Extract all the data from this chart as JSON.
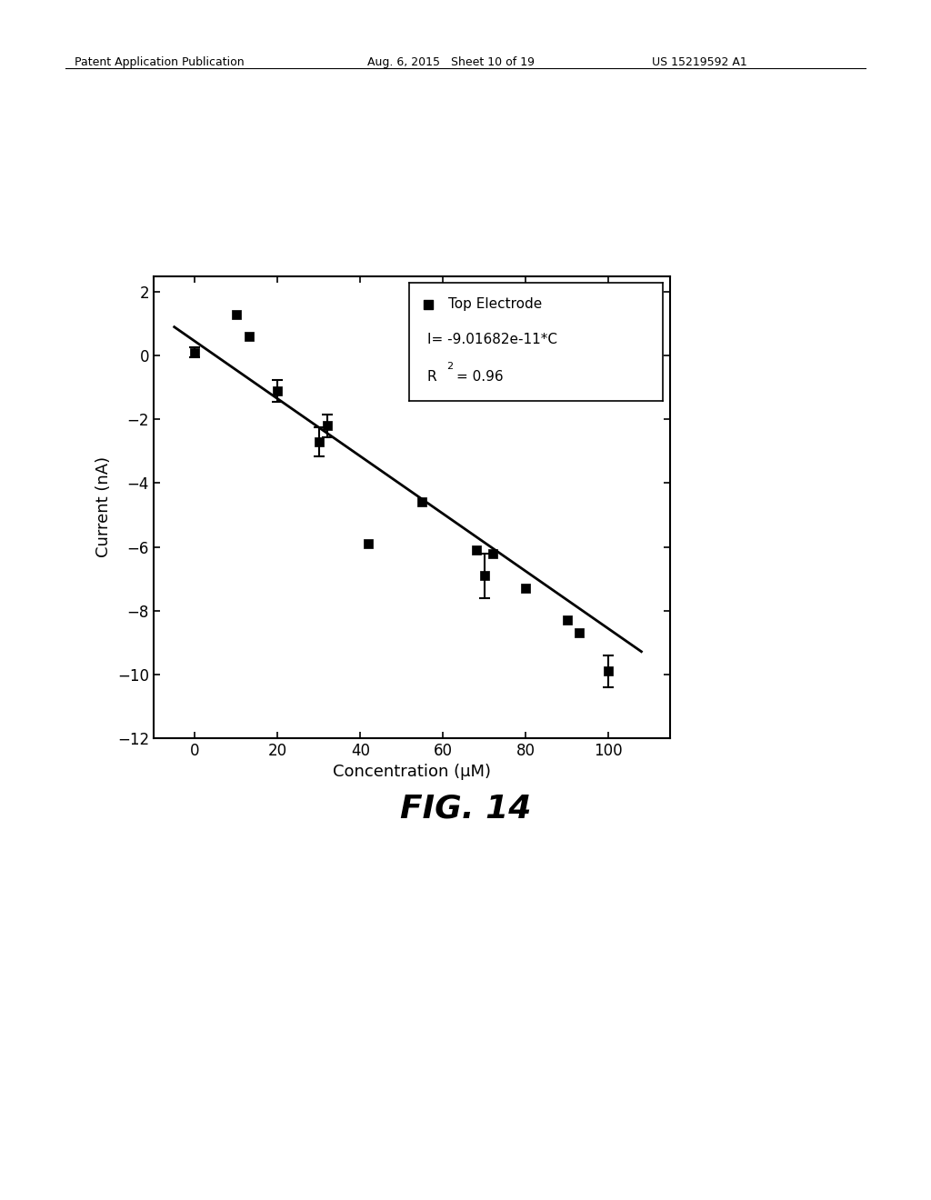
{
  "scatter_x": [
    0,
    10,
    13,
    20,
    30,
    32,
    42,
    55,
    68,
    70,
    72,
    80,
    90,
    93,
    100
  ],
  "scatter_y": [
    0.1,
    1.3,
    0.6,
    -1.1,
    -2.7,
    -2.2,
    -5.9,
    -4.6,
    -6.1,
    -6.9,
    -6.2,
    -7.3,
    -8.3,
    -8.7,
    -9.9
  ],
  "error_x": [
    0,
    20,
    30,
    32,
    70,
    100
  ],
  "error_y": [
    0.1,
    -1.1,
    -2.7,
    -2.2,
    -6.9,
    -9.9
  ],
  "error_vals": [
    0.15,
    0.35,
    0.45,
    0.35,
    0.7,
    0.5
  ],
  "fit_x0": -5,
  "fit_x1": 108,
  "fit_slope": -0.090168,
  "fit_intercept": 0.45,
  "xlabel": "Concentration (μM)",
  "ylabel": "Current (nA)",
  "xlim": [
    -10,
    115
  ],
  "ylim": [
    -12,
    2.5
  ],
  "xticks": [
    0,
    20,
    40,
    60,
    80,
    100
  ],
  "yticks": [
    -12,
    -10,
    -8,
    -6,
    -4,
    -2,
    0,
    2
  ],
  "legend_label": "Top Electrode",
  "legend_eq": "I= -9.01682e-11*C",
  "legend_r2_val": "= 0.96",
  "marker_color": "#000000",
  "line_color": "#000000",
  "background_color": "#ffffff",
  "fig_label": "FIG. 14",
  "header_left": "Patent Application Publication",
  "header_mid": "Aug. 6, 2015   Sheet 10 of 19",
  "header_right": "US 15219592 A1",
  "header_fontsize": 9,
  "axis_label_fontsize": 13,
  "tick_fontsize": 12,
  "legend_fontsize": 11,
  "fig_label_fontsize": 26
}
